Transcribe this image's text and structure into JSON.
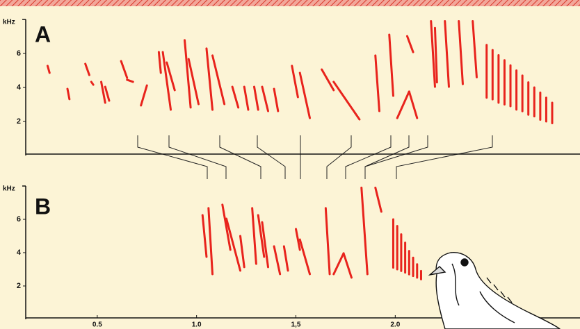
{
  "chart_data": [
    {
      "type": "spectrogram",
      "panel_label": "A",
      "ylabel": "kHz",
      "color": "#e8231c",
      "ylim": [
        0,
        8
      ],
      "yticks": [
        2,
        4,
        6
      ],
      "xlim": [
        0.14,
        2.93
      ],
      "syllables": [
        {
          "t": [
            0.25,
            0.26
          ],
          "f": [
            5.27,
            4.86
          ]
        },
        {
          "t": [
            0.35,
            0.36
          ],
          "f": [
            3.92,
            3.31
          ]
        },
        {
          "t": [
            0.44,
            0.46
          ],
          "f": [
            5.39,
            4.73
          ]
        },
        {
          "t": [
            0.47,
            0.48
          ],
          "f": [
            4.33,
            4.16
          ]
        },
        {
          "t": [
            0.52,
            0.54
          ],
          "f": [
            4.33,
            3.1
          ]
        },
        {
          "t": [
            0.54,
            0.56
          ],
          "f": [
            4.04,
            3.22
          ]
        },
        {
          "t": [
            0.62,
            0.65
          ],
          "f": [
            5.55,
            4.57
          ]
        },
        {
          "t": [
            0.65,
            0.68
          ],
          "f": [
            4.45,
            4.33
          ]
        },
        {
          "t": [
            0.75,
            0.72
          ],
          "f": [
            4.12,
            2.94
          ]
        },
        {
          "t": [
            0.81,
            0.82
          ],
          "f": [
            6.08,
            4.86
          ]
        },
        {
          "t": [
            0.83,
            0.87
          ],
          "f": [
            6.08,
            2.69
          ]
        },
        {
          "t": [
            0.85,
            0.89
          ],
          "f": [
            5.47,
            3.84
          ]
        },
        {
          "t": [
            0.94,
            0.97
          ],
          "f": [
            6.78,
            2.82
          ]
        },
        {
          "t": [
            0.96,
            1.01
          ],
          "f": [
            5.67,
            3.02
          ]
        },
        {
          "t": [
            1.05,
            1.08
          ],
          "f": [
            6.29,
            2.69
          ]
        },
        {
          "t": [
            1.08,
            1.14
          ],
          "f": [
            5.88,
            3.02
          ]
        },
        {
          "t": [
            1.18,
            1.21
          ],
          "f": [
            4.04,
            2.82
          ]
        },
        {
          "t": [
            1.24,
            1.26
          ],
          "f": [
            4.04,
            2.69
          ]
        },
        {
          "t": [
            1.29,
            1.31
          ],
          "f": [
            4.04,
            2.69
          ]
        },
        {
          "t": [
            1.33,
            1.36
          ],
          "f": [
            4.04,
            2.61
          ]
        },
        {
          "t": [
            1.39,
            1.41
          ],
          "f": [
            3.92,
            2.61
          ]
        },
        {
          "t": [
            1.48,
            1.51
          ],
          "f": [
            5.27,
            3.43
          ]
        },
        {
          "t": [
            1.52,
            1.57
          ],
          "f": [
            4.86,
            2.2
          ]
        },
        {
          "t": [
            1.63,
            1.69
          ],
          "f": [
            5.06,
            3.84
          ]
        },
        {
          "t": [
            1.69,
            1.82
          ],
          "f": [
            4.33,
            2.12
          ]
        },
        {
          "t": [
            1.9,
            1.92
          ],
          "f": [
            5.88,
            2.61
          ]
        },
        {
          "t": [
            1.97,
            1.99
          ],
          "f": [
            7.1,
            3.51
          ]
        },
        {
          "t": [
            2.01,
            2.07
          ],
          "f": [
            2.2,
            3.76
          ]
        },
        {
          "t": [
            2.07,
            2.11
          ],
          "f": [
            3.76,
            2.2
          ]
        },
        {
          "t": [
            2.06,
            2.09
          ],
          "f": [
            7.02,
            6.08
          ]
        },
        {
          "t": [
            2.18,
            2.2
          ],
          "f": [
            7.9,
            4.04
          ]
        },
        {
          "t": [
            2.2,
            2.21
          ],
          "f": [
            7.5,
            4.3
          ]
        },
        {
          "t": [
            2.25,
            2.27
          ],
          "f": [
            7.9,
            4.04
          ]
        },
        {
          "t": [
            2.32,
            2.34
          ],
          "f": [
            7.9,
            4.2
          ]
        },
        {
          "t": [
            2.39,
            2.41
          ],
          "f": [
            7.9,
            4.6
          ]
        },
        {
          "t": [
            2.46,
            2.46
          ],
          "f": [
            6.5,
            3.4
          ]
        },
        {
          "t": [
            2.49,
            2.49
          ],
          "f": [
            6.2,
            3.3
          ]
        },
        {
          "t": [
            2.52,
            2.52
          ],
          "f": [
            5.9,
            3.1
          ]
        },
        {
          "t": [
            2.55,
            2.55
          ],
          "f": [
            5.6,
            3.0
          ]
        },
        {
          "t": [
            2.58,
            2.58
          ],
          "f": [
            5.3,
            2.9
          ]
        },
        {
          "t": [
            2.61,
            2.61
          ],
          "f": [
            5.0,
            2.7
          ]
        },
        {
          "t": [
            2.64,
            2.64
          ],
          "f": [
            4.7,
            2.6
          ]
        },
        {
          "t": [
            2.67,
            2.67
          ],
          "f": [
            4.3,
            2.4
          ]
        },
        {
          "t": [
            2.7,
            2.7
          ],
          "f": [
            4.0,
            2.3
          ]
        },
        {
          "t": [
            2.73,
            2.73
          ],
          "f": [
            3.7,
            2.1
          ]
        },
        {
          "t": [
            2.76,
            2.76
          ],
          "f": [
            3.4,
            2.0
          ]
        },
        {
          "t": [
            2.79,
            2.79
          ],
          "f": [
            3.1,
            1.9
          ]
        }
      ]
    },
    {
      "type": "spectrogram",
      "panel_label": "B",
      "ylabel": "kHz",
      "color": "#e8231c",
      "ylim": [
        0,
        8
      ],
      "yticks": [
        2,
        4,
        6
      ],
      "xlim": [
        0.14,
        2.93
      ],
      "xticks": [
        0.5,
        {
          "value": 1.0,
          "label": "1.0"
        },
        {
          "value": 1.5,
          "label": "1,5"
        },
        {
          "value": 2.0,
          "label": "2.0"
        }
      ],
      "syllables": [
        {
          "t": [
            1.03,
            1.05
          ],
          "f": [
            6.25,
            3.75
          ]
        },
        {
          "t": [
            1.06,
            1.08
          ],
          "f": [
            6.67,
            2.71
          ]
        },
        {
          "t": [
            1.13,
            1.17
          ],
          "f": [
            6.88,
            4.17
          ]
        },
        {
          "t": [
            1.15,
            1.22
          ],
          "f": [
            6.04,
            2.92
          ]
        },
        {
          "t": [
            1.22,
            1.24
          ],
          "f": [
            5.0,
            3.13
          ]
        },
        {
          "t": [
            1.28,
            1.3
          ],
          "f": [
            6.67,
            3.33
          ]
        },
        {
          "t": [
            1.31,
            1.34
          ],
          "f": [
            6.25,
            3.75
          ]
        },
        {
          "t": [
            1.33,
            1.36
          ],
          "f": [
            5.83,
            3.13
          ]
        },
        {
          "t": [
            1.39,
            1.42
          ],
          "f": [
            4.38,
            2.71
          ]
        },
        {
          "t": [
            1.44,
            1.46
          ],
          "f": [
            4.38,
            2.92
          ]
        },
        {
          "t": [
            1.5,
            1.52
          ],
          "f": [
            5.42,
            4.17
          ]
        },
        {
          "t": [
            1.52,
            1.57
          ],
          "f": [
            4.79,
            2.71
          ]
        },
        {
          "t": [
            1.65,
            1.67
          ],
          "f": [
            6.67,
            2.71
          ]
        },
        {
          "t": [
            1.69,
            1.74
          ],
          "f": [
            2.71,
            3.96
          ]
        },
        {
          "t": [
            1.74,
            1.78
          ],
          "f": [
            3.96,
            2.5
          ]
        },
        {
          "t": [
            1.83,
            1.86
          ],
          "f": [
            7.9,
            2.71
          ]
        },
        {
          "t": [
            1.9,
            1.93
          ],
          "f": [
            7.9,
            6.46
          ]
        },
        {
          "t": [
            1.99,
            1.99
          ],
          "f": [
            6.0,
            3.1
          ]
        },
        {
          "t": [
            2.01,
            2.01
          ],
          "f": [
            5.6,
            3.0
          ]
        },
        {
          "t": [
            2.03,
            2.03
          ],
          "f": [
            5.1,
            2.9
          ]
        },
        {
          "t": [
            2.05,
            2.05
          ],
          "f": [
            4.6,
            2.8
          ]
        },
        {
          "t": [
            2.07,
            2.07
          ],
          "f": [
            4.1,
            2.7
          ]
        },
        {
          "t": [
            2.09,
            2.09
          ],
          "f": [
            3.7,
            2.6
          ]
        },
        {
          "t": [
            2.11,
            2.11
          ],
          "f": [
            3.3,
            2.5
          ]
        },
        {
          "t": [
            2.13,
            2.13
          ],
          "f": [
            2.9,
            2.4
          ]
        }
      ]
    }
  ]
}
